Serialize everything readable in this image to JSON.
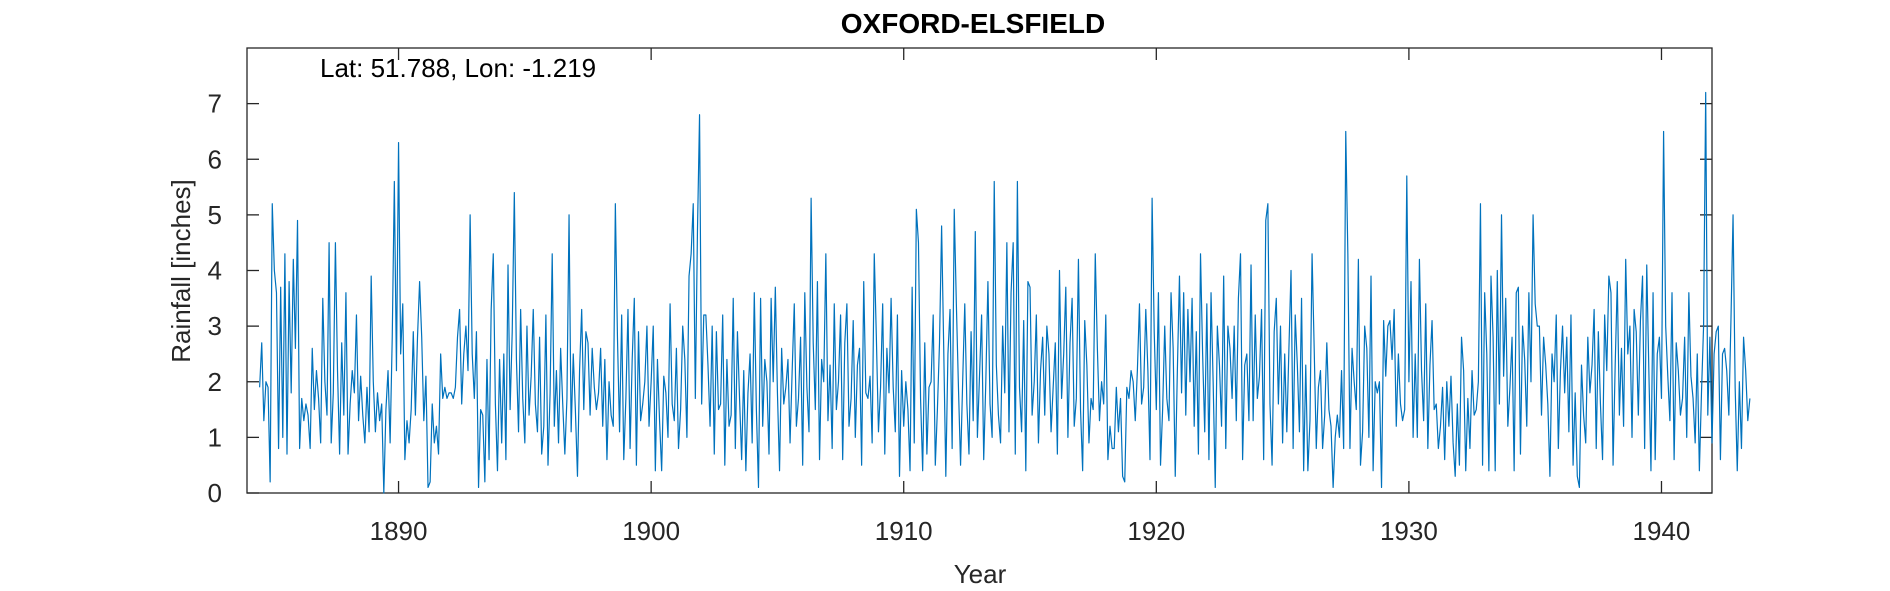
{
  "chart_data": {
    "type": "line",
    "title": "OXFORD-ELSFIELD",
    "annotation": "Lat: 51.788, Lon: -1.219",
    "xlabel": "Year",
    "ylabel": "Rainfall [inches]",
    "xlim": [
      1884.0,
      1942.0
    ],
    "ylim": [
      0,
      8
    ],
    "xticks": [
      1890,
      1900,
      1910,
      1920,
      1930,
      1940
    ],
    "yticks": [
      0,
      1,
      2,
      3,
      4,
      5,
      6,
      7
    ],
    "grid": false,
    "series_color": "#0072BD",
    "resolution": "monthly",
    "x_start": "1884-07",
    "series": [
      {
        "values": [
          1.9,
          2.7,
          1.3,
          2.0,
          1.9,
          0.2,
          5.2,
          4.0,
          3.6,
          0.8,
          3.7,
          1.0,
          4.3,
          0.7,
          3.8,
          1.8,
          4.2,
          2.6,
          4.9,
          0.8,
          1.7,
          1.3,
          1.6,
          1.4,
          0.8,
          2.6,
          1.5,
          2.2,
          1.7,
          0.9,
          3.5,
          2.0,
          1.4,
          4.5,
          0.9,
          1.8,
          4.5,
          2.2,
          0.7,
          2.7,
          1.4,
          3.6,
          0.7,
          1.6,
          2.2,
          1.8,
          3.2,
          1.3,
          2.1,
          1.4,
          0.9,
          1.9,
          1.1,
          3.9,
          2.0,
          1.1,
          1.8,
          1.3,
          1.6,
          0.0,
          1.5,
          2.2,
          0.9,
          2.8,
          5.6,
          2.2,
          6.3,
          2.5,
          3.4,
          0.6,
          1.3,
          0.9,
          1.5,
          2.9,
          1.4,
          2.8,
          3.8,
          2.8,
          1.3,
          2.1,
          0.1,
          0.2,
          1.6,
          0.9,
          1.2,
          0.7,
          2.5,
          1.7,
          1.9,
          1.7,
          1.8,
          1.8,
          1.7,
          1.9,
          2.8,
          3.3,
          1.6,
          2.5,
          3.0,
          2.2,
          5.0,
          2.5,
          1.7,
          2.9,
          0.1,
          1.5,
          1.4,
          0.2,
          2.4,
          0.6,
          3.3,
          4.3,
          1.6,
          0.4,
          2.4,
          0.9,
          2.5,
          0.6,
          4.1,
          1.5,
          2.9,
          5.4,
          2.4,
          1.1,
          3.3,
          1.7,
          0.9,
          3.0,
          1.4,
          2.1,
          3.3,
          1.6,
          1.1,
          2.8,
          0.7,
          1.2,
          3.2,
          0.5,
          1.8,
          4.3,
          1.2,
          2.2,
          0.9,
          2.6,
          1.6,
          0.7,
          1.7,
          5.0,
          1.1,
          2.5,
          1.5,
          0.3,
          2.2,
          3.3,
          1.5,
          2.9,
          2.7,
          1.4,
          2.6,
          1.9,
          1.5,
          1.8,
          2.6,
          1.2,
          2.4,
          0.6,
          2.0,
          1.4,
          1.2,
          5.2,
          2.8,
          1.1,
          3.2,
          0.6,
          1.7,
          3.3,
          0.8,
          2.4,
          3.5,
          0.5,
          2.9,
          1.3,
          1.6,
          2.0,
          3.0,
          1.2,
          2.0,
          3.0,
          0.4,
          2.4,
          1.3,
          0.4,
          2.1,
          1.8,
          1.0,
          3.4,
          1.6,
          1.3,
          2.6,
          0.8,
          1.5,
          3.0,
          2.4,
          1.0,
          3.9,
          4.3,
          5.2,
          1.7,
          4.7,
          6.8,
          1.6,
          3.2,
          3.2,
          2.3,
          1.2,
          3.0,
          0.7,
          2.9,
          1.5,
          1.6,
          3.2,
          0.5,
          2.4,
          1.2,
          1.4,
          3.5,
          0.8,
          2.9,
          1.7,
          0.6,
          2.2,
          0.4,
          1.8,
          2.5,
          0.9,
          3.6,
          1.5,
          0.1,
          3.5,
          1.2,
          2.4,
          2.0,
          0.7,
          3.5,
          2.0,
          3.7,
          1.8,
          0.4,
          2.6,
          1.6,
          1.9,
          2.4,
          0.9,
          2.2,
          3.4,
          1.2,
          1.7,
          2.8,
          0.5,
          3.6,
          1.9,
          1.1,
          5.3,
          2.7,
          1.5,
          3.8,
          0.6,
          2.4,
          2.0,
          4.3,
          1.3,
          2.3,
          0.8,
          3.4,
          1.5,
          2.0,
          3.2,
          0.6,
          2.7,
          3.4,
          1.2,
          1.7,
          3.1,
          1.0,
          2.3,
          2.6,
          0.5,
          3.8,
          1.8,
          1.7,
          2.1,
          0.9,
          4.3,
          2.8,
          1.1,
          1.9,
          3.4,
          0.7,
          2.6,
          1.8,
          3.5,
          1.9,
          1.1,
          3.2,
          0.3,
          2.2,
          1.2,
          2.0,
          1.5,
          0.4,
          3.7,
          0.9,
          5.1,
          4.5,
          1.7,
          0.4,
          2.7,
          0.7,
          1.9,
          2.0,
          3.2,
          0.5,
          1.5,
          2.7,
          4.8,
          2.6,
          0.3,
          2.5,
          3.3,
          0.8,
          5.1,
          3.4,
          1.9,
          0.5,
          2.0,
          3.4,
          1.6,
          0.7,
          2.9,
          1.3,
          4.7,
          1.0,
          2.1,
          3.2,
          0.6,
          2.0,
          3.8,
          1.6,
          1.0,
          5.6,
          2.3,
          1.4,
          0.9,
          3.0,
          1.8,
          4.5,
          1.1,
          3.6,
          4.5,
          0.7,
          5.6,
          1.9,
          1.1,
          3.1,
          0.4,
          3.8,
          3.7,
          1.4,
          2.0,
          3.2,
          0.9,
          2.2,
          2.8,
          1.4,
          3.0,
          2.5,
          1.1,
          1.9,
          2.7,
          0.7,
          4.0,
          1.7,
          2.5,
          3.7,
          1.0,
          2.7,
          3.5,
          1.2,
          1.7,
          4.2,
          1.5,
          0.4,
          3.1,
          2.3,
          0.9,
          1.7,
          1.5,
          4.3,
          2.6,
          1.3,
          2.0,
          1.6,
          3.2,
          0.6,
          1.2,
          0.8,
          0.8,
          1.9,
          1.1,
          1.7,
          0.3,
          0.2,
          1.9,
          1.7,
          2.2,
          2.0,
          1.3,
          2.2,
          3.4,
          1.6,
          1.9,
          3.3,
          2.2,
          0.6,
          5.3,
          2.9,
          1.5,
          3.6,
          0.5,
          1.5,
          3.0,
          1.7,
          1.3,
          3.6,
          2.6,
          0.3,
          2.2,
          3.9,
          1.8,
          3.6,
          1.4,
          3.3,
          2.0,
          3.5,
          1.2,
          2.9,
          0.7,
          4.3,
          2.5,
          1.1,
          3.4,
          0.6,
          3.6,
          2.0,
          0.1,
          3.0,
          2.3,
          1.2,
          3.9,
          0.8,
          3.0,
          2.6,
          1.7,
          3.0,
          1.3,
          3.5,
          4.3,
          0.6,
          2.3,
          2.5,
          1.3,
          4.1,
          1.3,
          3.2,
          1.7,
          2.1,
          3.3,
          0.6,
          4.9,
          5.2,
          1.6,
          0.5,
          2.9,
          3.5,
          1.6,
          3.0,
          0.9,
          2.5,
          1.1,
          2.6,
          4.0,
          0.8,
          3.2,
          2.3,
          1.1,
          3.5,
          0.4,
          2.3,
          0.4,
          1.3,
          4.3,
          2.6,
          0.8,
          1.9,
          2.2,
          0.8,
          1.4,
          2.7,
          1.5,
          1.2,
          0.1,
          1.0,
          1.4,
          1.0,
          2.2,
          0.8,
          6.5,
          4.3,
          0.8,
          2.6,
          2.0,
          1.5,
          4.2,
          0.5,
          1.1,
          3.0,
          2.6,
          1.0,
          3.9,
          0.4,
          2.0,
          1.8,
          2.0,
          0.1,
          3.1,
          2.1,
          3.0,
          3.1,
          2.4,
          3.3,
          1.2,
          2.5,
          1.6,
          1.3,
          1.5,
          5.7,
          2.0,
          3.8,
          1.0,
          2.5,
          1.0,
          4.2,
          2.2,
          1.3,
          3.4,
          0.8,
          2.3,
          3.1,
          1.5,
          1.6,
          0.8,
          1.2,
          1.9,
          0.6,
          2.0,
          1.2,
          2.1,
          0.9,
          0.3,
          1.6,
          0.5,
          2.8,
          2.2,
          0.4,
          1.7,
          0.8,
          2.2,
          1.4,
          1.5,
          2.0,
          5.2,
          0.5,
          3.6,
          2.5,
          0.4,
          3.9,
          2.8,
          0.4,
          4.0,
          1.6,
          5.0,
          2.1,
          3.5,
          1.2,
          1.9,
          2.8,
          0.4,
          3.6,
          3.7,
          0.7,
          3.0,
          2.4,
          1.2,
          3.6,
          2.0,
          5.0,
          3.4,
          3.0,
          3.0,
          1.4,
          2.8,
          2.3,
          1.6,
          0.3,
          2.5,
          2.0,
          3.2,
          0.8,
          2.2,
          3.0,
          1.8,
          2.8,
          1.1,
          3.2,
          0.5,
          1.8,
          0.3,
          0.1,
          2.3,
          1.4,
          0.9,
          2.8,
          1.8,
          2.3,
          3.3,
          0.8,
          2.9,
          1.6,
          0.6,
          3.2,
          2.2,
          3.9,
          3.6,
          0.5,
          2.3,
          3.8,
          1.4,
          2.6,
          1.2,
          4.2,
          2.5,
          3.0,
          1.0,
          3.3,
          2.9,
          1.4,
          3.1,
          3.9,
          0.8,
          4.1,
          2.2,
          0.4,
          3.6,
          0.6,
          2.5,
          2.8,
          1.7,
          6.5,
          3.0,
          2.1,
          1.3,
          3.6,
          0.6,
          2.7,
          2.2,
          1.4,
          1.7,
          2.8,
          1.0,
          3.6,
          2.1,
          1.7,
          0.9,
          2.5,
          0.4,
          1.8,
          3.0,
          7.2,
          1.4,
          2.8,
          0.9,
          2.5,
          2.9,
          3.0,
          0.6,
          2.5,
          2.6,
          2.2,
          1.4,
          3.1,
          5.0,
          1.9,
          0.4,
          2.0,
          0.8,
          2.8,
          2.2,
          1.3,
          1.7
        ]
      }
    ]
  }
}
